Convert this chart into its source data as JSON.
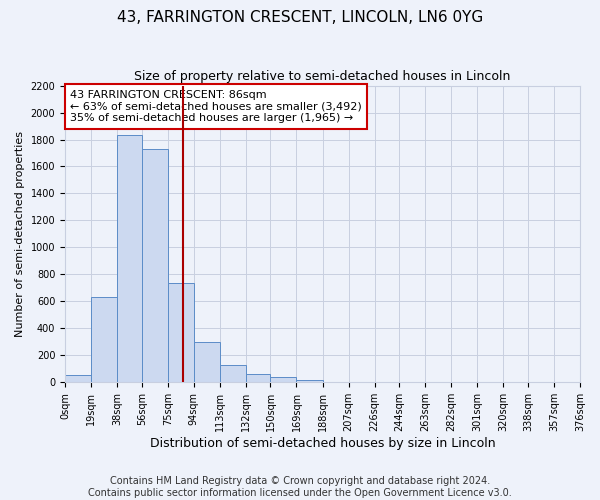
{
  "title": "43, FARRINGTON CRESCENT, LINCOLN, LN6 0YG",
  "subtitle": "Size of property relative to semi-detached houses in Lincoln",
  "xlabel": "Distribution of semi-detached houses by size in Lincoln",
  "ylabel": "Number of semi-detached properties",
  "annotation_line1": "43 FARRINGTON CRESCENT: 86sqm",
  "annotation_line2": "← 63% of semi-detached houses are smaller (3,492)",
  "annotation_line3": "35% of semi-detached houses are larger (1,965) →",
  "property_size": 86,
  "bin_edges": [
    0,
    19,
    38,
    56,
    75,
    94,
    113,
    132,
    150,
    169,
    188,
    207,
    226,
    244,
    263,
    282,
    301,
    320,
    338,
    357,
    376
  ],
  "bin_counts": [
    55,
    630,
    1830,
    1730,
    740,
    300,
    130,
    65,
    40,
    20,
    5,
    5,
    2,
    1,
    0,
    0,
    0,
    0,
    0,
    0
  ],
  "bar_facecolor": "#ccd9f0",
  "bar_edgecolor": "#5b8cc8",
  "vline_color": "#aa0000",
  "vline_x": 86,
  "annotation_box_edgecolor": "#cc0000",
  "annotation_box_facecolor": "#ffffff",
  "grid_color": "#c8cfe0",
  "background_color": "#eef2fa",
  "ylim": [
    0,
    2200
  ],
  "yticks": [
    0,
    200,
    400,
    600,
    800,
    1000,
    1200,
    1400,
    1600,
    1800,
    2000,
    2200
  ],
  "xtick_labels": [
    "0sqm",
    "19sqm",
    "38sqm",
    "56sqm",
    "75sqm",
    "94sqm",
    "113sqm",
    "132sqm",
    "150sqm",
    "169sqm",
    "188sqm",
    "207sqm",
    "226sqm",
    "244sqm",
    "263sqm",
    "282sqm",
    "301sqm",
    "320sqm",
    "338sqm",
    "357sqm",
    "376sqm"
  ],
  "footer_line1": "Contains HM Land Registry data © Crown copyright and database right 2024.",
  "footer_line2": "Contains public sector information licensed under the Open Government Licence v3.0.",
  "title_fontsize": 11,
  "subtitle_fontsize": 9,
  "ylabel_fontsize": 8,
  "xlabel_fontsize": 9,
  "footer_fontsize": 7,
  "annotation_fontsize": 8,
  "tick_fontsize": 7
}
